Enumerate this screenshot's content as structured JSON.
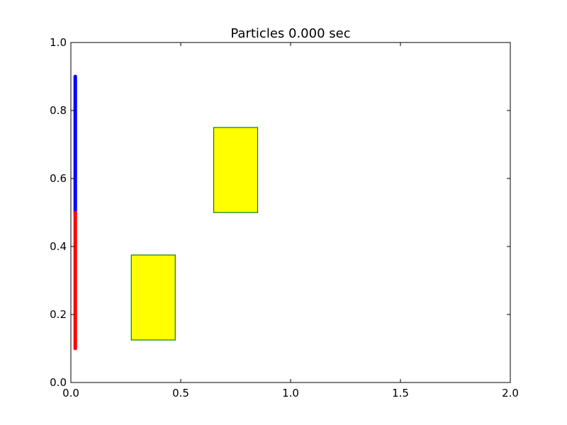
{
  "chart_data": {
    "type": "scatter",
    "title": "Particles 0.000 sec",
    "xlabel": "",
    "ylabel": "",
    "xlim": [
      0.0,
      2.0
    ],
    "ylim": [
      0.0,
      1.0
    ],
    "grid": false,
    "x_ticks": [
      "0.0",
      "0.5",
      "1.0",
      "1.5",
      "2.0"
    ],
    "y_ticks": [
      "0.0",
      "0.2",
      "0.4",
      "0.6",
      "0.8",
      "1.0"
    ],
    "series": [
      {
        "color": "#0000ff",
        "x": 0.02,
        "y_range": [
          0.5,
          0.9
        ]
      },
      {
        "color": "#ff0000",
        "x": 0.02,
        "y_range": [
          0.1,
          0.5
        ]
      }
    ],
    "rectangles": [
      {
        "x": 0.275,
        "y": 0.125,
        "width": 0.2,
        "height": 0.25,
        "fill": "#ffff00",
        "edge": "#008000"
      },
      {
        "x": 0.65,
        "y": 0.5,
        "width": 0.2,
        "height": 0.25,
        "fill": "#ffff00",
        "edge": "#008000"
      }
    ]
  }
}
